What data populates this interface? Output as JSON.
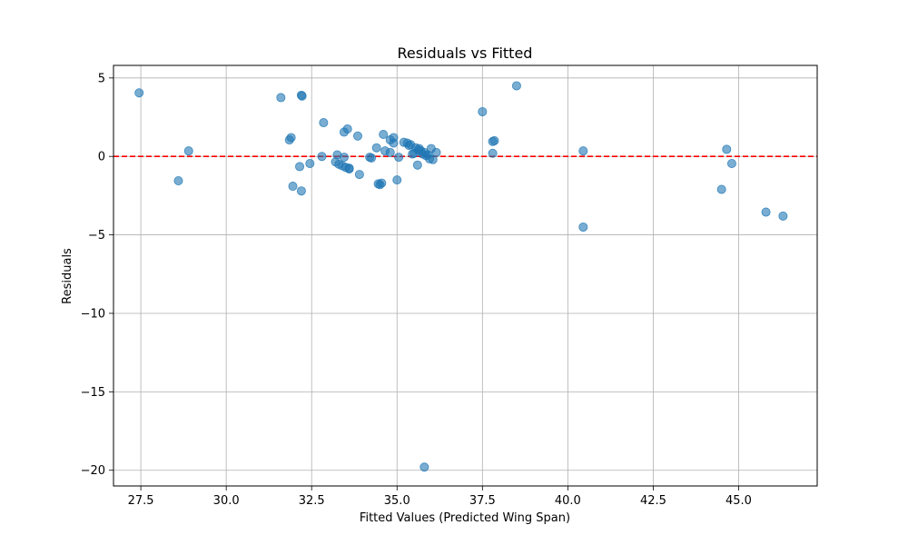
{
  "chart_data": {
    "type": "scatter",
    "title": "Residuals vs Fitted",
    "xlabel": "Fitted Values (Predicted Wing Span)",
    "ylabel": "Residuals",
    "xlim": [
      26.7,
      47.3
    ],
    "ylim": [
      -21.0,
      5.8
    ],
    "xticks": [
      27.5,
      30.0,
      32.5,
      35.0,
      37.5,
      40.0,
      42.5,
      45.0
    ],
    "xtick_labels": [
      "27.5",
      "30.0",
      "32.5",
      "35.0",
      "37.5",
      "40.0",
      "42.5",
      "45.0"
    ],
    "yticks": [
      5,
      0,
      -5,
      -10,
      -15,
      -20
    ],
    "ytick_labels": [
      "5",
      "0",
      "−5",
      "−10",
      "−15",
      "−20"
    ],
    "grid": true,
    "reference_line": {
      "y": 0,
      "color": "#ff0000",
      "style": "dashed"
    },
    "point_color": "#1f77b4",
    "points": [
      {
        "x": 27.45,
        "y": 4.05
      },
      {
        "x": 28.6,
        "y": -1.55
      },
      {
        "x": 28.9,
        "y": 0.35
      },
      {
        "x": 31.6,
        "y": 3.75
      },
      {
        "x": 31.85,
        "y": 1.05
      },
      {
        "x": 31.9,
        "y": 1.2
      },
      {
        "x": 31.95,
        "y": -1.9
      },
      {
        "x": 32.15,
        "y": -0.65
      },
      {
        "x": 32.2,
        "y": 3.9
      },
      {
        "x": 32.22,
        "y": 3.85
      },
      {
        "x": 32.2,
        "y": -2.2
      },
      {
        "x": 32.45,
        "y": -0.45
      },
      {
        "x": 32.8,
        "y": 0.0
      },
      {
        "x": 32.85,
        "y": 2.15
      },
      {
        "x": 33.2,
        "y": -0.35
      },
      {
        "x": 33.25,
        "y": 0.1
      },
      {
        "x": 33.3,
        "y": -0.5
      },
      {
        "x": 33.4,
        "y": -0.6
      },
      {
        "x": 33.45,
        "y": 1.55
      },
      {
        "x": 33.45,
        "y": -0.05
      },
      {
        "x": 33.5,
        "y": -0.7
      },
      {
        "x": 33.55,
        "y": 1.75
      },
      {
        "x": 33.6,
        "y": -0.8
      },
      {
        "x": 33.6,
        "y": -0.75
      },
      {
        "x": 33.85,
        "y": 1.3
      },
      {
        "x": 33.9,
        "y": -1.15
      },
      {
        "x": 34.2,
        "y": -0.05
      },
      {
        "x": 34.25,
        "y": -0.1
      },
      {
        "x": 34.4,
        "y": 0.55
      },
      {
        "x": 34.45,
        "y": -1.75
      },
      {
        "x": 34.5,
        "y": -1.8
      },
      {
        "x": 34.55,
        "y": -1.7
      },
      {
        "x": 34.6,
        "y": 1.4
      },
      {
        "x": 34.65,
        "y": 0.35
      },
      {
        "x": 34.8,
        "y": 1.05
      },
      {
        "x": 34.8,
        "y": 0.25
      },
      {
        "x": 34.9,
        "y": 0.85
      },
      {
        "x": 34.9,
        "y": 1.2
      },
      {
        "x": 35.0,
        "y": -1.5
      },
      {
        "x": 35.05,
        "y": -0.05
      },
      {
        "x": 35.2,
        "y": 0.9
      },
      {
        "x": 35.3,
        "y": 0.85
      },
      {
        "x": 35.35,
        "y": 0.7
      },
      {
        "x": 35.4,
        "y": 0.75
      },
      {
        "x": 35.45,
        "y": 0.15
      },
      {
        "x": 35.5,
        "y": 0.2
      },
      {
        "x": 35.55,
        "y": 0.55
      },
      {
        "x": 35.6,
        "y": -0.55
      },
      {
        "x": 35.62,
        "y": 0.4
      },
      {
        "x": 35.65,
        "y": 0.5
      },
      {
        "x": 35.7,
        "y": 0.35
      },
      {
        "x": 35.75,
        "y": 0.15
      },
      {
        "x": 35.8,
        "y": 0.25
      },
      {
        "x": 35.85,
        "y": 0.05
      },
      {
        "x": 35.9,
        "y": 0.1
      },
      {
        "x": 35.95,
        "y": -0.15
      },
      {
        "x": 36.0,
        "y": 0.5
      },
      {
        "x": 36.05,
        "y": -0.2
      },
      {
        "x": 36.15,
        "y": 0.25
      },
      {
        "x": 35.8,
        "y": -19.8
      },
      {
        "x": 37.5,
        "y": 2.85
      },
      {
        "x": 37.8,
        "y": 0.95
      },
      {
        "x": 37.85,
        "y": 1.0
      },
      {
        "x": 37.8,
        "y": 0.2
      },
      {
        "x": 38.5,
        "y": 4.5
      },
      {
        "x": 40.45,
        "y": 0.35
      },
      {
        "x": 40.45,
        "y": -4.5
      },
      {
        "x": 44.5,
        "y": -2.1
      },
      {
        "x": 44.65,
        "y": 0.45
      },
      {
        "x": 44.8,
        "y": -0.45
      },
      {
        "x": 45.8,
        "y": -3.55
      },
      {
        "x": 46.3,
        "y": -3.8
      }
    ]
  }
}
